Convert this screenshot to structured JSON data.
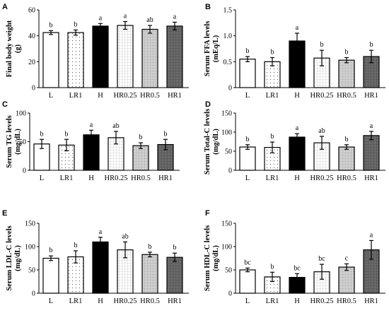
{
  "chart_data": [
    {
      "panel": "A",
      "type": "bar",
      "ylabel": "Final body weight",
      "yunit": "(g)",
      "ylim": [
        0,
        60
      ],
      "yticks": [
        0,
        20,
        40,
        60
      ],
      "categories": [
        "L",
        "LR1",
        "H",
        "HR0.25",
        "HR0.5",
        "HR1"
      ],
      "values": [
        42.5,
        42.5,
        47.5,
        48,
        45,
        47.5
      ],
      "errors": [
        1.5,
        2,
        2,
        3,
        3,
        3
      ],
      "letters": [
        "b",
        "b",
        "a",
        "a",
        "ab",
        "a"
      ]
    },
    {
      "panel": "B",
      "type": "bar",
      "ylabel": "Serum FFA levels",
      "yunit": "(mEq/L)",
      "ylim": [
        0,
        1.5
      ],
      "yticks": [
        "0",
        "0.5",
        "1.0",
        "1.5"
      ],
      "categories": [
        "L",
        "LR1",
        "H",
        "HR0.25",
        "HR0.5",
        "HR1"
      ],
      "values": [
        0.55,
        0.5,
        0.9,
        0.57,
        0.53,
        0.6
      ],
      "errors": [
        0.05,
        0.08,
        0.15,
        0.15,
        0.05,
        0.12
      ],
      "letters": [
        "b",
        "b",
        "a",
        "b",
        "b",
        "b"
      ]
    },
    {
      "panel": "C",
      "type": "bar",
      "ylabel": "Serum TG levels",
      "yunit": "(mg/dL)",
      "ylim": [
        0,
        100
      ],
      "yticks": [
        0,
        50,
        100
      ],
      "categories": [
        "L",
        "LR1",
        "H",
        "HR0.25",
        "HR0.5",
        "HR1"
      ],
      "values": [
        46,
        44,
        62,
        57,
        43,
        45
      ],
      "errors": [
        8,
        10,
        8,
        11,
        5,
        9
      ],
      "letters": [
        "b",
        "b",
        "a",
        "ab",
        "b",
        "b"
      ]
    },
    {
      "panel": "D",
      "type": "bar",
      "ylabel": "Serum Total-C levels",
      "yunit": "(mg/dL)",
      "ylim": [
        0,
        150
      ],
      "yticks": [
        0,
        50,
        100,
        150
      ],
      "categories": [
        "L",
        "LR1",
        "H",
        "HR0.25",
        "HR0.5",
        "HR1"
      ],
      "values": [
        61,
        60,
        87,
        72,
        61,
        91
      ],
      "errors": [
        6,
        14,
        9,
        17,
        6,
        11
      ],
      "letters": [
        "b",
        "b",
        "a",
        "ab",
        "b",
        "a"
      ]
    },
    {
      "panel": "E",
      "type": "bar",
      "ylabel": "Serum LDL-C levels",
      "yunit": "(mg/dL)",
      "ylim": [
        0,
        150
      ],
      "yticks": [
        0,
        50,
        100,
        150
      ],
      "categories": [
        "L",
        "LR1",
        "H",
        "HR0.25",
        "HR0.5",
        "HR1"
      ],
      "values": [
        75,
        78,
        110,
        93,
        83,
        77
      ],
      "errors": [
        5,
        13,
        10,
        17,
        5,
        9
      ],
      "letters": [
        "b",
        "b",
        "a",
        "ab",
        "b",
        "b"
      ]
    },
    {
      "panel": "F",
      "type": "bar",
      "ylabel": "Serum HDL-C levels",
      "yunit": "(mg/dL)",
      "ylim": [
        0,
        150
      ],
      "yticks": [
        0,
        50,
        100,
        150
      ],
      "categories": [
        "L",
        "LR1",
        "H",
        "HR0.25",
        "HR0.5",
        "HR1"
      ],
      "values": [
        50,
        35,
        34,
        46,
        56,
        93
      ],
      "errors": [
        4,
        10,
        8,
        16,
        7,
        20
      ],
      "letters": [
        "bc",
        "b",
        "bc",
        "bc",
        "c",
        "a"
      ]
    }
  ],
  "bar_styles": {
    "fills": [
      "#ffffff",
      "#ffffff",
      "#000000",
      "#ffffff",
      "#d4d4d4",
      "#6b6b6b"
    ],
    "patterns": [
      "none",
      "dots",
      "none",
      "grid",
      "grid",
      "grid"
    ]
  }
}
